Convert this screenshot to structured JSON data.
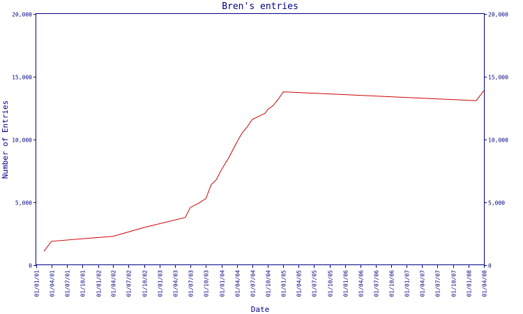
{
  "chart_data": {
    "type": "line",
    "title": "Bren's entries",
    "xlabel": "Date",
    "ylabel": "Number of Entries",
    "ylim": [
      0,
      20000
    ],
    "y_ticks": [
      0,
      5000,
      10000,
      15000,
      20000
    ],
    "y_tick_labels": [
      "0",
      "5,000",
      "10,000",
      "15,000",
      "20,000"
    ],
    "x_range": [
      "2001-01-01",
      "2008-04-01"
    ],
    "x_ticks": [
      "2001-01-01",
      "2001-04-01",
      "2001-07-01",
      "2001-10-01",
      "2002-01-01",
      "2002-04-01",
      "2002-07-01",
      "2002-10-01",
      "2003-01-01",
      "2003-04-01",
      "2003-07-01",
      "2003-10-01",
      "2004-01-01",
      "2004-04-01",
      "2004-07-01",
      "2004-10-01",
      "2005-01-01",
      "2005-04-01",
      "2005-07-01",
      "2005-10-01",
      "2006-01-01",
      "2006-04-01",
      "2006-07-01",
      "2006-10-01",
      "2007-01-01",
      "2007-04-01",
      "2007-07-01",
      "2007-10-01",
      "2008-01-01",
      "2008-04-01"
    ],
    "x_tick_labels": [
      "01/01/01",
      "01/04/01",
      "01/07/01",
      "01/10/01",
      "01/01/02",
      "01/04/02",
      "01/07/02",
      "01/10/02",
      "01/01/03",
      "01/04/03",
      "01/07/03",
      "01/10/03",
      "01/01/04",
      "01/04/04",
      "01/07/04",
      "01/10/04",
      "01/01/05",
      "01/04/05",
      "01/07/05",
      "01/10/05",
      "01/01/06",
      "01/04/06",
      "01/07/06",
      "01/10/06",
      "01/01/07",
      "01/04/07",
      "01/07/07",
      "01/10/07",
      "01/01/08",
      "01/04/08"
    ],
    "grid": false,
    "series": [
      {
        "color": "#cc0000",
        "points": [
          [
            "2001-02-15",
            1100
          ],
          [
            "2001-04-01",
            1900
          ],
          [
            "2002-04-01",
            2300
          ],
          [
            "2002-10-01",
            3000
          ],
          [
            "2003-06-01",
            3800
          ],
          [
            "2003-07-01",
            4600
          ],
          [
            "2003-08-15",
            4900
          ],
          [
            "2003-10-01",
            5300
          ],
          [
            "2003-11-01",
            6400
          ],
          [
            "2003-12-01",
            6800
          ],
          [
            "2004-01-01",
            7600
          ],
          [
            "2004-02-15",
            8600
          ],
          [
            "2004-04-01",
            9800
          ],
          [
            "2004-05-01",
            10500
          ],
          [
            "2004-06-01",
            11000
          ],
          [
            "2004-07-01",
            11600
          ],
          [
            "2004-08-01",
            11800
          ],
          [
            "2004-09-15",
            12100
          ],
          [
            "2004-10-01",
            12400
          ],
          [
            "2004-11-01",
            12700
          ],
          [
            "2004-12-01",
            13200
          ],
          [
            "2005-01-01",
            13800
          ],
          [
            "2008-02-15",
            13100
          ],
          [
            "2008-04-01",
            13900
          ]
        ]
      }
    ]
  }
}
